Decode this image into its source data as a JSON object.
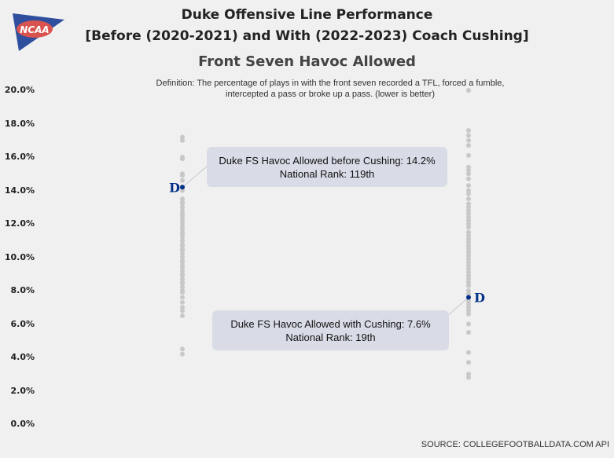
{
  "title_line1": "Duke Offensive Line Performance",
  "title_line2": "[Before (2020-2021) and With (2022-2023) Coach Cushing]",
  "subtitle": "Front Seven Havoc Allowed",
  "definition_line1": "Definition: The percentage of plays in with the front seven recorded a TFL, forced a fumble,",
  "definition_line2": "intercepted a pass or broke up a pass. (lower is better)",
  "source": "SOURCE: COLLEGEFOOTBALLDATA.COM API",
  "logo_text": "NCAA",
  "colors": {
    "background": "#f0f0f0",
    "dots": "#c8c8c8",
    "duke": "#003087",
    "annotation_box": "#d9dce6",
    "logo_blue": "#2f4f9e",
    "logo_red": "#d9534f"
  },
  "annotations": {
    "before_line1": "Duke FS Havoc Allowed before Cushing: 14.2%",
    "before_line2": "National Rank: 119th",
    "with_line1": "Duke FS Havoc Allowed with Cushing: 7.6%",
    "with_line2": "National Rank: 19th"
  },
  "chart_data": {
    "type": "scatter",
    "title": "Front Seven Havoc Allowed",
    "ylim": [
      0,
      20
    ],
    "y_unit": "%",
    "y_ticks": [
      "0.0%",
      "2.0%",
      "4.0%",
      "6.0%",
      "8.0%",
      "10.0%",
      "12.0%",
      "14.0%",
      "16.0%",
      "18.0%",
      "20.0%"
    ],
    "grid": false,
    "highlight_marker": "D",
    "series": [
      {
        "name": "Before (2020-2021)",
        "highlight": {
          "label": "Duke",
          "value": 14.2,
          "rank": "119th"
        },
        "values": [
          17.2,
          17.0,
          16.0,
          15.9,
          15.0,
          14.9,
          14.6,
          14.2,
          14.0,
          13.5,
          13.3,
          13.2,
          13.0,
          12.8,
          12.6,
          12.5,
          12.3,
          12.2,
          12.0,
          11.8,
          11.7,
          11.5,
          11.4,
          11.2,
          11.0,
          10.8,
          10.7,
          10.5,
          10.4,
          10.2,
          10.0,
          9.8,
          9.7,
          9.5,
          9.4,
          9.2,
          9.0,
          8.9,
          8.7,
          8.5,
          8.4,
          8.2,
          8.0,
          7.9,
          7.6,
          7.3,
          7.0,
          6.8,
          6.5,
          4.5,
          4.2
        ]
      },
      {
        "name": "With (2022-2023)",
        "highlight": {
          "label": "Duke",
          "value": 7.6,
          "rank": "19th"
        },
        "values": [
          20.0,
          17.6,
          17.3,
          17.0,
          16.7,
          16.1,
          15.4,
          15.2,
          15.0,
          14.7,
          14.3,
          14.0,
          13.8,
          13.5,
          13.2,
          13.0,
          12.8,
          12.6,
          12.4,
          12.2,
          12.0,
          11.8,
          11.5,
          11.3,
          11.1,
          10.9,
          10.7,
          10.5,
          10.3,
          10.1,
          9.9,
          9.7,
          9.5,
          9.3,
          9.1,
          8.9,
          8.7,
          8.5,
          8.3,
          8.0,
          7.8,
          7.4,
          7.2,
          7.0,
          6.8,
          6.6,
          6.0,
          5.5,
          4.3,
          3.7,
          3.0,
          2.8
        ]
      }
    ]
  }
}
